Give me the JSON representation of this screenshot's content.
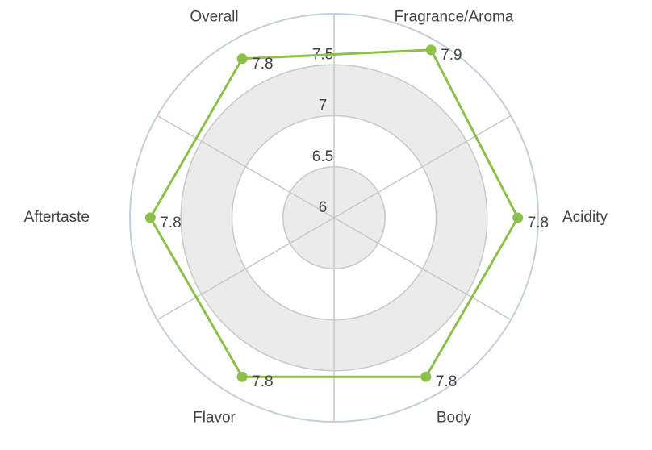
{
  "chart_data": {
    "type": "radar",
    "categories": [
      "Fragrance/Aroma",
      "Acidity",
      "Body",
      "Flavor",
      "Aftertaste",
      "Overall"
    ],
    "values": [
      7.9,
      7.8,
      7.8,
      7.8,
      7.8,
      7.8
    ],
    "color": "#8cc04b",
    "ylim": [
      6,
      8
    ],
    "yticks": [
      6,
      6.5,
      7,
      7.5
    ],
    "grid": true
  }
}
